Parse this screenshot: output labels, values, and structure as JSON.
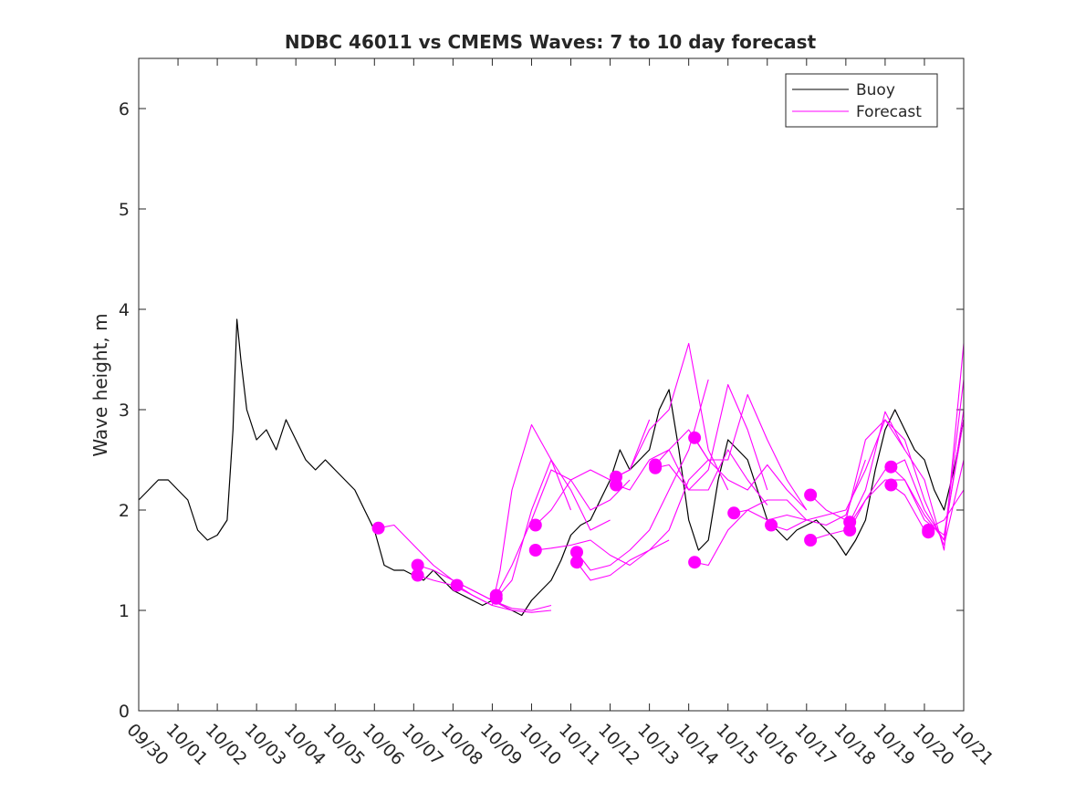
{
  "chart_data": {
    "type": "line",
    "title": "NDBC 46011 vs CMEMS Waves: 7 to 10 day forecast",
    "xlabel": "",
    "ylabel": "Wave height, m",
    "x_unit": "days since 09/30",
    "xlim": [
      0,
      21
    ],
    "ylim": [
      0,
      6.5
    ],
    "yticks": [
      0,
      1,
      2,
      3,
      4,
      5,
      6
    ],
    "xtick_labels": [
      "09/30",
      "10/01",
      "10/02",
      "10/03",
      "10/04",
      "10/05",
      "10/06",
      "10/07",
      "10/08",
      "10/09",
      "10/10",
      "10/11",
      "10/12",
      "10/13",
      "10/14",
      "10/15",
      "10/16",
      "10/17",
      "10/18",
      "10/19",
      "10/20",
      "10/21"
    ],
    "legend": {
      "position": "top-right",
      "entries": [
        {
          "label": "Buoy",
          "color": "#000000"
        },
        {
          "label": "Forecast",
          "color": "#ff00ff"
        }
      ]
    },
    "colors": {
      "buoy": "#000000",
      "forecast": "#ff00ff"
    },
    "series": [
      {
        "name": "Buoy",
        "x": [
          0,
          0.25,
          0.5,
          0.75,
          1,
          1.25,
          1.5,
          1.75,
          2,
          2.25,
          2.4,
          2.5,
          2.6,
          2.75,
          3,
          3.25,
          3.5,
          3.75,
          4,
          4.25,
          4.5,
          4.75,
          5,
          5.25,
          5.5,
          5.75,
          6,
          6.25,
          6.5,
          6.75,
          7,
          7.25,
          7.5,
          7.75,
          8,
          8.25,
          8.5,
          8.75,
          9,
          9.25,
          9.5,
          9.75,
          10,
          10.25,
          10.5,
          10.75,
          11,
          11.25,
          11.5,
          11.75,
          12,
          12.25,
          12.5,
          12.75,
          13,
          13.25,
          13.5,
          13.75,
          14,
          14.25,
          14.5,
          14.75,
          15,
          15.25,
          15.5,
          15.75,
          16,
          16.25,
          16.5,
          16.75,
          17,
          17.25,
          17.5,
          17.75,
          18,
          18.25,
          18.5,
          18.75,
          19,
          19.25,
          19.5,
          19.75,
          20,
          20.25,
          20.5,
          20.75,
          21
        ],
        "y": [
          2.1,
          2.2,
          2.3,
          2.3,
          2.2,
          2.1,
          1.8,
          1.7,
          1.75,
          1.9,
          2.8,
          3.9,
          3.5,
          3.0,
          2.7,
          2.8,
          2.6,
          2.9,
          2.7,
          2.5,
          2.4,
          2.5,
          2.4,
          2.3,
          2.2,
          2.0,
          1.8,
          1.45,
          1.4,
          1.4,
          1.35,
          1.3,
          1.4,
          1.3,
          1.2,
          1.15,
          1.1,
          1.05,
          1.1,
          1.05,
          1.0,
          0.95,
          1.1,
          1.2,
          1.3,
          1.5,
          1.75,
          1.85,
          1.9,
          2.1,
          2.3,
          2.6,
          2.4,
          2.5,
          2.6,
          3.0,
          3.2,
          2.6,
          1.9,
          1.6,
          1.7,
          2.3,
          2.7,
          2.6,
          2.5,
          2.2,
          1.9,
          1.8,
          1.7,
          1.8,
          1.85,
          1.9,
          1.8,
          1.7,
          1.55,
          1.7,
          1.9,
          2.4,
          2.8,
          3.0,
          2.8,
          2.6,
          2.5,
          2.2,
          2.0,
          2.4,
          2.9
        ]
      },
      {
        "name": "Forecast 1",
        "x": [
          6.1,
          6.5,
          7,
          7.5,
          8,
          8.5,
          9,
          9.5
        ],
        "y": [
          1.82,
          1.85,
          1.65,
          1.45,
          1.3,
          1.2,
          1.1,
          1.0
        ]
      },
      {
        "name": "Forecast 2",
        "x": [
          7.1,
          7.5,
          8,
          8.5,
          9,
          9.5,
          10,
          10.5
        ],
        "y": [
          1.45,
          1.4,
          1.3,
          1.2,
          1.1,
          1.02,
          1.0,
          1.05
        ]
      },
      {
        "name": "Forecast 3",
        "x": [
          7.1,
          7.5,
          8,
          8.5,
          9,
          9.5,
          10,
          10.5
        ],
        "y": [
          1.35,
          1.3,
          1.25,
          1.15,
          1.05,
          1.0,
          0.98,
          1.0
        ]
      },
      {
        "name": "Forecast 4",
        "x": [
          8.1,
          8.5,
          9,
          9.2,
          9.5,
          10,
          10.5,
          11
        ],
        "y": [
          1.25,
          1.15,
          1.05,
          1.4,
          2.2,
          2.85,
          2.5,
          2.0
        ]
      },
      {
        "name": "Forecast 5",
        "x": [
          9.1,
          9.5,
          10,
          10.5,
          11,
          11.5,
          12
        ],
        "y": [
          1.12,
          1.3,
          2.0,
          2.5,
          2.2,
          1.8,
          1.9
        ]
      },
      {
        "name": "Forecast 6",
        "x": [
          9.1,
          9.5,
          10,
          10.5,
          11,
          11.5,
          12,
          12.5
        ],
        "y": [
          1.15,
          1.45,
          1.9,
          2.4,
          2.3,
          2.0,
          2.1,
          2.3
        ]
      },
      {
        "name": "Forecast 7",
        "x": [
          10.1,
          10.5,
          11,
          11.5,
          12,
          12.5,
          13
        ],
        "y": [
          1.85,
          2.0,
          2.3,
          2.4,
          2.3,
          2.4,
          2.9
        ]
      },
      {
        "name": "Forecast 8",
        "x": [
          10.1,
          10.5,
          11,
          11.5,
          12,
          12.5,
          13,
          13.5
        ],
        "y": [
          1.6,
          1.62,
          1.65,
          1.7,
          1.55,
          1.45,
          1.6,
          1.7
        ]
      },
      {
        "name": "Forecast 9",
        "x": [
          11.15,
          11.5,
          12,
          12.5,
          13,
          13.5,
          14,
          14.5
        ],
        "y": [
          1.58,
          1.4,
          1.45,
          1.6,
          1.8,
          2.2,
          2.6,
          3.3
        ]
      },
      {
        "name": "Forecast 10",
        "x": [
          11.15,
          11.5,
          12,
          12.5,
          13,
          13.5,
          14,
          14.5
        ],
        "y": [
          1.48,
          1.3,
          1.35,
          1.5,
          1.6,
          1.8,
          2.3,
          2.5
        ]
      },
      {
        "name": "Forecast 11",
        "x": [
          12.15,
          12.5,
          13,
          13.5,
          14,
          14.5,
          15
        ],
        "y": [
          2.33,
          2.4,
          2.8,
          3.0,
          3.66,
          2.6,
          2.2
        ]
      },
      {
        "name": "Forecast 12",
        "x": [
          12.15,
          12.5,
          13,
          13.5,
          14,
          14.5,
          15,
          15.5,
          16
        ],
        "y": [
          2.25,
          2.2,
          2.5,
          2.6,
          2.2,
          2.4,
          3.25,
          2.8,
          2.2
        ]
      },
      {
        "name": "Forecast 13",
        "x": [
          13.15,
          13.5,
          14,
          14.5,
          15,
          15.5,
          16,
          16.5,
          17
        ],
        "y": [
          2.45,
          2.6,
          2.8,
          2.5,
          2.5,
          3.15,
          2.7,
          2.3,
          2.0
        ]
      },
      {
        "name": "Forecast 14",
        "x": [
          13.15,
          13.5,
          14,
          14.5,
          15,
          15.5,
          16
        ],
        "y": [
          2.42,
          2.45,
          2.2,
          2.2,
          2.6,
          2.3,
          2.05
        ]
      },
      {
        "name": "Forecast 15",
        "x": [
          14.15,
          14.5,
          15,
          15.5,
          16,
          16.5,
          17
        ],
        "y": [
          1.48,
          1.45,
          1.8,
          2.0,
          2.1,
          2.1,
          1.9
        ]
      },
      {
        "name": "Forecast 16",
        "x": [
          14.15,
          14.5,
          15,
          15.5,
          16,
          16.5,
          17
        ],
        "y": [
          2.72,
          2.5,
          2.3,
          2.2,
          2.45,
          2.2,
          2.0
        ]
      },
      {
        "name": "Forecast 17",
        "x": [
          15.15,
          15.5,
          16,
          16.5,
          17,
          17.5,
          18,
          18.5
        ],
        "y": [
          1.97,
          2.0,
          1.9,
          1.95,
          1.9,
          1.85,
          1.95,
          2.5
        ]
      },
      {
        "name": "Forecast 18",
        "x": [
          16.1,
          16.5,
          17,
          17.5,
          18,
          18.5,
          19,
          19.5
        ],
        "y": [
          1.85,
          1.8,
          1.9,
          1.95,
          2.0,
          2.4,
          2.9,
          2.6
        ]
      },
      {
        "name": "Forecast 19",
        "x": [
          17.1,
          17.5,
          18,
          18.5,
          19,
          19.5,
          20,
          20.5,
          21
        ],
        "y": [
          2.15,
          2.0,
          1.9,
          2.7,
          2.9,
          2.7,
          2.1,
          1.65,
          2.5
        ]
      },
      {
        "name": "Forecast 20",
        "x": [
          17.1,
          17.5,
          18,
          18.5,
          19,
          19.5,
          20,
          20.5,
          21
        ],
        "y": [
          1.7,
          1.75,
          1.8,
          2.1,
          2.4,
          2.5,
          2.0,
          1.7,
          3.3
        ]
      },
      {
        "name": "Forecast 21",
        "x": [
          18.1,
          18.5,
          19,
          19.5,
          20,
          20.5,
          21
        ],
        "y": [
          1.88,
          2.2,
          2.98,
          2.6,
          2.3,
          1.6,
          3.66
        ]
      },
      {
        "name": "Forecast 22",
        "x": [
          18.1,
          18.5,
          19,
          19.5,
          20,
          20.5,
          21
        ],
        "y": [
          1.8,
          2.1,
          2.3,
          2.3,
          1.95,
          1.7,
          3.0
        ]
      },
      {
        "name": "Forecast 23",
        "x": [
          19.15,
          19.5,
          20,
          20.5,
          21
        ],
        "y": [
          2.43,
          2.3,
          1.9,
          1.75,
          2.9
        ]
      },
      {
        "name": "Forecast 24",
        "x": [
          19.15,
          19.5,
          20,
          20.5,
          21
        ],
        "y": [
          2.25,
          2.15,
          1.8,
          1.9,
          2.2
        ]
      }
    ],
    "forecast_start_points": {
      "x": [
        6.1,
        7.1,
        7.1,
        8.1,
        9.1,
        9.1,
        10.1,
        10.1,
        11.15,
        11.15,
        12.15,
        12.15,
        13.15,
        13.15,
        14.15,
        14.15,
        15.15,
        16.1,
        17.1,
        17.1,
        18.1,
        18.1,
        19.15,
        19.15,
        20.1,
        20.1
      ],
      "y": [
        1.82,
        1.45,
        1.35,
        1.25,
        1.12,
        1.15,
        1.85,
        1.6,
        1.58,
        1.48,
        2.33,
        2.25,
        2.45,
        2.42,
        1.48,
        2.72,
        1.97,
        1.85,
        2.15,
        1.7,
        1.88,
        1.8,
        2.43,
        2.25,
        1.8,
        1.78
      ]
    }
  }
}
